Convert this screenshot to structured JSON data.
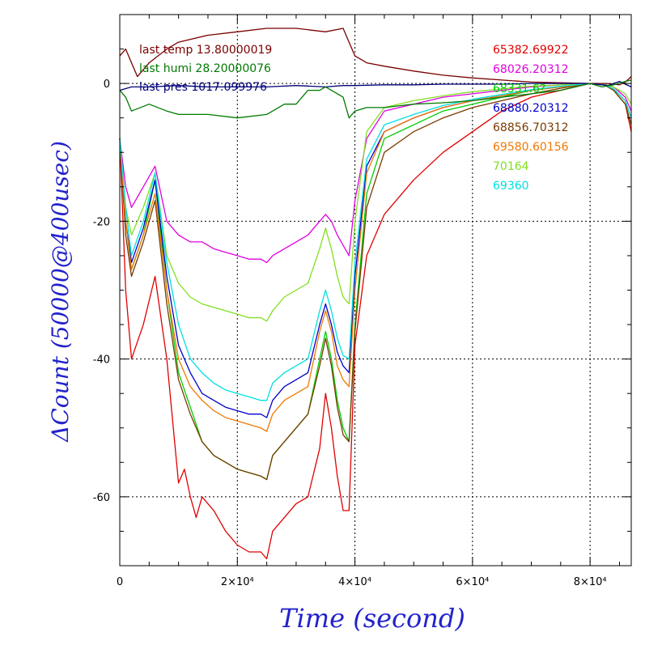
{
  "chart_data": {
    "type": "line",
    "xlabel": "Time (second)",
    "ylabel": "ΔCount (50000@400usec)",
    "xlim": [
      0,
      87000
    ],
    "ylim": [
      -70,
      10
    ],
    "x_ticks": [
      {
        "value": 0,
        "label": "0"
      },
      {
        "value": 20000,
        "label": "2×10⁴"
      },
      {
        "value": 40000,
        "label": "4×10⁴"
      },
      {
        "value": 60000,
        "label": "6×10⁴"
      },
      {
        "value": 80000,
        "label": "8×10⁴"
      }
    ],
    "y_ticks": [
      {
        "value": 0,
        "label": "0"
      },
      {
        "value": -20,
        "label": "-20"
      },
      {
        "value": -40,
        "label": "-40"
      },
      {
        "value": -60,
        "label": "-60"
      }
    ],
    "grid": true,
    "env_legend": [
      {
        "text": "last temp 13.80000019",
        "color": "#7a0000"
      },
      {
        "text": "last humi 28.20000076",
        "color": "#007a00"
      },
      {
        "text": "last pres 1017.099976",
        "color": "#00007a"
      }
    ],
    "series": [
      {
        "name": "65382.69922",
        "color": "#e00000",
        "x": [
          0,
          1000,
          2000,
          4000,
          6000,
          8000,
          10000,
          11000,
          12000,
          13000,
          14000,
          16000,
          18000,
          20000,
          22000,
          24000,
          25000,
          26000,
          28000,
          30000,
          32000,
          34000,
          35000,
          36000,
          37000,
          38000,
          39000,
          40000,
          42000,
          45000,
          50000,
          55000,
          60000,
          65000,
          70000,
          75000,
          80000,
          82000,
          84000,
          86000,
          87000
        ],
        "y": [
          -8,
          -30,
          -40,
          -35,
          -28,
          -40,
          -58,
          -56,
          -60,
          -63,
          -60,
          -62,
          -65,
          -67,
          -68,
          -68,
          -69,
          -65,
          -63,
          -61,
          -60,
          -53,
          -45,
          -50,
          -57,
          -62,
          -62,
          -38,
          -25,
          -19,
          -14,
          -10,
          -7,
          -4,
          -2,
          -1,
          0,
          0,
          -1,
          -3,
          -7
        ]
      },
      {
        "name": "68026.20312",
        "color": "#e000e0",
        "x": [
          0,
          1000,
          2000,
          4000,
          6000,
          8000,
          10000,
          12000,
          14000,
          16000,
          18000,
          20000,
          22000,
          24000,
          25000,
          26000,
          28000,
          30000,
          32000,
          34000,
          35000,
          36000,
          37000,
          38000,
          39000,
          40000,
          42000,
          45000,
          50000,
          55000,
          60000,
          65000,
          70000,
          75000,
          80000,
          82000,
          84000,
          86000,
          87000
        ],
        "y": [
          -8,
          -15,
          -18,
          -15,
          -12,
          -20,
          -22,
          -23,
          -23,
          -24,
          -24.5,
          -25,
          -25.5,
          -25.5,
          -26,
          -25,
          -24,
          -23,
          -22,
          -20,
          -19,
          -20,
          -22,
          -23.5,
          -25,
          -17,
          -8,
          -4,
          -3,
          -2,
          -1.5,
          -1,
          -0.5,
          -0.2,
          0,
          0,
          -0.5,
          -2,
          -4
        ]
      },
      {
        "name": "68331.6?",
        "color": "#00cc00",
        "x": [
          0,
          1000,
          2000,
          4000,
          6000,
          8000,
          10000,
          12000,
          14000,
          16000,
          18000,
          20000,
          22000,
          24000,
          25000,
          26000,
          28000,
          30000,
          32000,
          34000,
          35000,
          36000,
          37000,
          38000,
          39000,
          40000,
          42000,
          45000,
          50000,
          55000,
          60000,
          65000,
          70000,
          75000,
          80000,
          82000,
          84000,
          86000,
          87000
        ],
        "y": [
          -8,
          -20,
          -27,
          -22,
          -14,
          -30,
          -42,
          -47,
          -52,
          -54,
          -55,
          -56,
          -56.5,
          -57,
          -57.5,
          -54,
          -52,
          -50,
          -48,
          -40,
          -36,
          -40,
          -46,
          -50,
          -52,
          -35,
          -16,
          -8,
          -6,
          -4,
          -3,
          -2,
          -1,
          -0.5,
          0,
          0,
          -1,
          -3,
          -6
        ]
      },
      {
        "name": "68880.20312",
        "color": "#0000cc",
        "x": [
          0,
          1000,
          2000,
          4000,
          6000,
          8000,
          10000,
          12000,
          14000,
          16000,
          18000,
          20000,
          22000,
          24000,
          25000,
          26000,
          28000,
          30000,
          32000,
          34000,
          35000,
          36000,
          37000,
          38000,
          39000,
          40000,
          42000,
          45000,
          50000,
          55000,
          60000,
          65000,
          70000,
          75000,
          80000,
          82000,
          84000,
          86000,
          87000
        ],
        "y": [
          -8,
          -20,
          -26,
          -21,
          -14,
          -28,
          -38,
          -42,
          -45,
          -46,
          -47,
          -47.5,
          -48,
          -48,
          -48.5,
          -46,
          -44,
          -43,
          -42,
          -35,
          -32,
          -35,
          -39,
          -41,
          -42,
          -28,
          -12,
          -7,
          -5,
          -3.5,
          -2.5,
          -1.8,
          -1,
          -0.5,
          0,
          0,
          -0.8,
          -2.5,
          -5
        ]
      },
      {
        "name": "68856.70312",
        "color": "#7a3a00",
        "x": [
          0,
          1000,
          2000,
          4000,
          6000,
          8000,
          10000,
          12000,
          14000,
          16000,
          18000,
          20000,
          22000,
          24000,
          25000,
          26000,
          28000,
          30000,
          32000,
          34000,
          35000,
          36000,
          37000,
          38000,
          39000,
          40000,
          42000,
          45000,
          50000,
          55000,
          60000,
          65000,
          70000,
          75000,
          80000,
          82000,
          84000,
          86000,
          87000
        ],
        "y": [
          -8,
          -22,
          -28,
          -23,
          -17,
          -32,
          -43,
          -48,
          -52,
          -54,
          -55,
          -56,
          -56.5,
          -57,
          -57.5,
          -54,
          -52,
          -50,
          -48,
          -41,
          -37,
          -41,
          -47,
          -51,
          -52,
          -36,
          -18,
          -10,
          -7,
          -5,
          -3.5,
          -2.5,
          -1.5,
          -0.7,
          0,
          0,
          -1,
          -3,
          -6
        ]
      },
      {
        "name": "69580.60156",
        "color": "#f07800",
        "x": [
          0,
          1000,
          2000,
          4000,
          6000,
          8000,
          10000,
          12000,
          14000,
          16000,
          18000,
          20000,
          22000,
          24000,
          25000,
          26000,
          28000,
          30000,
          32000,
          34000,
          35000,
          36000,
          37000,
          38000,
          39000,
          40000,
          42000,
          45000,
          50000,
          55000,
          60000,
          65000,
          70000,
          75000,
          80000,
          82000,
          84000,
          86000,
          87000
        ],
        "y": [
          -8,
          -20,
          -27,
          -22,
          -16,
          -30,
          -40,
          -44,
          -46,
          -47.5,
          -48.5,
          -49,
          -49.5,
          -50,
          -50.5,
          -48,
          -46,
          -45,
          -44,
          -36,
          -33,
          -36,
          -41,
          -43,
          -44,
          -30,
          -13,
          -7,
          -5,
          -3.5,
          -2.5,
          -1.8,
          -1,
          -0.5,
          0,
          0,
          -0.8,
          -2.5,
          -5
        ]
      },
      {
        "name": "70164",
        "color": "#80e020",
        "x": [
          0,
          1000,
          2000,
          4000,
          6000,
          8000,
          10000,
          12000,
          14000,
          16000,
          18000,
          20000,
          22000,
          24000,
          25000,
          26000,
          28000,
          30000,
          32000,
          34000,
          35000,
          36000,
          37000,
          38000,
          39000,
          40000,
          42000,
          45000,
          50000,
          55000,
          60000,
          65000,
          70000,
          75000,
          80000,
          82000,
          84000,
          86000,
          87000
        ],
        "y": [
          -8,
          -18,
          -22,
          -18,
          -13,
          -25,
          -29,
          -31,
          -32,
          -32.5,
          -33,
          -33.5,
          -34,
          -34,
          -34.5,
          -33,
          -31,
          -30,
          -29,
          -24,
          -21,
          -24,
          -28,
          -31,
          -32,
          -20,
          -7,
          -3.5,
          -2.5,
          -1.8,
          -1.2,
          -0.8,
          -0.4,
          -0.2,
          0,
          0,
          -0.5,
          -1.5,
          -3
        ]
      },
      {
        "name": "69360",
        "color": "#00e0e0",
        "x": [
          0,
          1000,
          2000,
          4000,
          6000,
          8000,
          10000,
          12000,
          14000,
          16000,
          18000,
          20000,
          22000,
          24000,
          25000,
          26000,
          28000,
          30000,
          32000,
          34000,
          35000,
          36000,
          37000,
          38000,
          39000,
          40000,
          42000,
          45000,
          50000,
          55000,
          60000,
          65000,
          70000,
          75000,
          80000,
          82000,
          84000,
          86000,
          87000
        ],
        "y": [
          -8,
          -18,
          -25,
          -20,
          -13,
          -26,
          -35,
          -40,
          -42,
          -43.5,
          -44.5,
          -45,
          -45.5,
          -46,
          -46,
          -43.5,
          -42,
          -41,
          -40,
          -33,
          -30,
          -33,
          -37,
          -39.5,
          -40,
          -26,
          -11,
          -6,
          -4.5,
          -3.2,
          -2.3,
          -1.6,
          -0.9,
          -0.4,
          0,
          0,
          -0.8,
          -2.5,
          -5
        ]
      },
      {
        "name": "",
        "color": "#7a0000",
        "x": [
          0,
          1000,
          2000,
          3000,
          5000,
          8000,
          10000,
          15000,
          20000,
          25000,
          30000,
          35000,
          38000,
          39000,
          40000,
          42000,
          45000,
          50000,
          55000,
          60000,
          65000,
          70000,
          75000,
          80000,
          83000,
          85000,
          86000,
          87000
        ],
        "y": [
          4,
          5,
          3,
          1,
          3,
          5,
          6,
          7,
          7.5,
          8,
          8,
          7.5,
          8,
          6,
          4,
          3,
          2.5,
          1.8,
          1.2,
          0.8,
          0.5,
          0.2,
          0.1,
          0,
          0,
          -0.2,
          0.2,
          1
        ]
      },
      {
        "name": "",
        "color": "#00007a",
        "x": [
          0,
          2000,
          5000,
          10000,
          15000,
          20000,
          25000,
          30000,
          35000,
          38000,
          40000,
          45000,
          50000,
          55000,
          60000,
          65000,
          70000,
          75000,
          80000,
          83000,
          85000,
          87000
        ],
        "y": [
          -1,
          -0.5,
          -0.5,
          -0.3,
          -0.5,
          -0.5,
          -0.5,
          -0.3,
          -0.5,
          -0.3,
          -0.3,
          -0.2,
          -0.2,
          -0.1,
          -0.1,
          -0.1,
          0,
          0,
          0,
          -0.3,
          0.3,
          -0.5
        ]
      },
      {
        "name": "",
        "color": "#007a00",
        "x": [
          0,
          1000,
          2000,
          5000,
          8000,
          10000,
          15000,
          20000,
          25000,
          28000,
          30000,
          32000,
          34000,
          35000,
          36000,
          38000,
          39000,
          40000,
          42000,
          45000,
          50000,
          55000,
          60000,
          65000,
          70000,
          75000,
          80000,
          82000,
          84000,
          86000,
          87000
        ],
        "y": [
          -1,
          -2,
          -4,
          -3,
          -4,
          -4.5,
          -4.5,
          -5,
          -4.5,
          -3,
          -3,
          -1,
          -1,
          -0.5,
          -1,
          -2,
          -5,
          -4,
          -3.5,
          -3.5,
          -3,
          -2.8,
          -2.5,
          -2,
          -1.5,
          -1,
          0,
          -0.5,
          -0.2,
          0.3,
          0.5
        ]
      }
    ]
  }
}
